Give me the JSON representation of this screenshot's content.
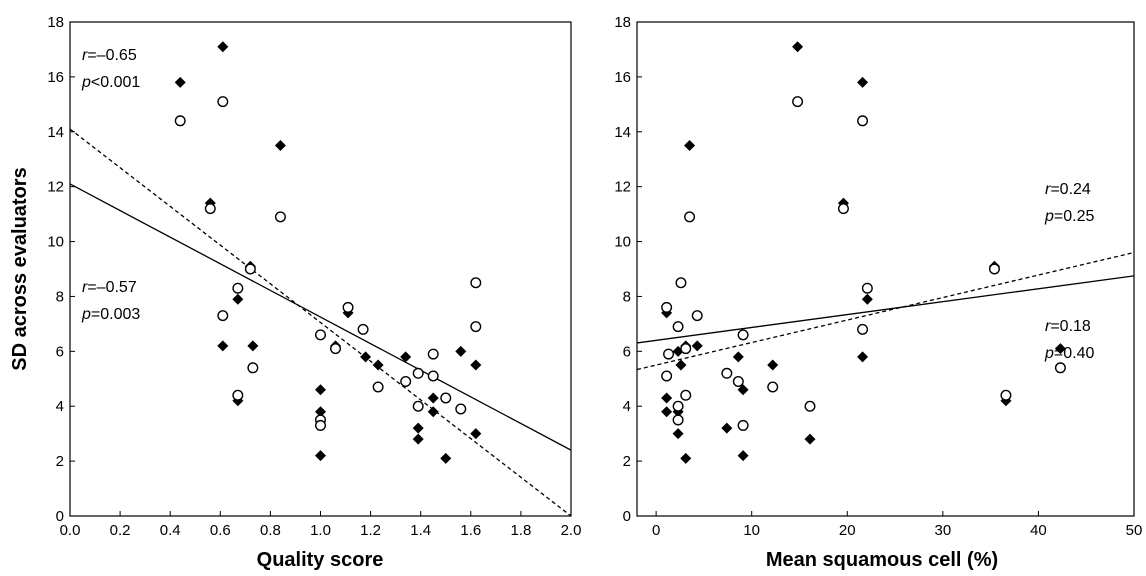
{
  "colors": {
    "axis": "#000000",
    "marker": "#000000",
    "background": "#ffffff"
  },
  "chart_data": [
    {
      "type": "scatter",
      "xlabel": "Quality score",
      "ylabel": "SD across evaluators",
      "xlim": [
        0.0,
        2.0
      ],
      "ylim": [
        0,
        18
      ],
      "xticks": [
        "0.0",
        "0.2",
        "0.4",
        "0.6",
        "0.8",
        "1.0",
        "1.2",
        "1.4",
        "1.6",
        "1.8",
        "2.0"
      ],
      "yticks": [
        "0",
        "2",
        "4",
        "6",
        "8",
        "10",
        "12",
        "14",
        "16",
        "18"
      ],
      "grid": false,
      "series": [
        {
          "marker": "filled-diamond",
          "line": "dashed",
          "fit": {
            "intercept": 14.1,
            "slope": -7.05
          },
          "points": [
            [
              0.44,
              15.8
            ],
            [
              0.61,
              17.1
            ],
            [
              0.56,
              11.4
            ],
            [
              0.72,
              9.1
            ],
            [
              0.84,
              13.5
            ],
            [
              0.67,
              7.9
            ],
            [
              0.61,
              6.2
            ],
            [
              0.73,
              6.2
            ],
            [
              0.67,
              4.2
            ],
            [
              1.0,
              4.6
            ],
            [
              1.0,
              3.8
            ],
            [
              1.0,
              2.2
            ],
            [
              1.11,
              7.4
            ],
            [
              1.06,
              6.2
            ],
            [
              1.18,
              5.8
            ],
            [
              1.23,
              5.5
            ],
            [
              1.34,
              5.8
            ],
            [
              1.45,
              4.3
            ],
            [
              1.45,
              3.8
            ],
            [
              1.39,
              3.2
            ],
            [
              1.39,
              2.8
            ],
            [
              1.5,
              2.1
            ],
            [
              1.56,
              6.0
            ],
            [
              1.62,
              5.5
            ],
            [
              1.62,
              3.0
            ]
          ]
        },
        {
          "marker": "open-circle",
          "line": "solid",
          "fit": {
            "intercept": 12.1,
            "slope": -4.85
          },
          "points": [
            [
              0.44,
              14.4
            ],
            [
              0.61,
              15.1
            ],
            [
              0.56,
              11.2
            ],
            [
              0.84,
              10.9
            ],
            [
              0.72,
              9.0
            ],
            [
              0.67,
              8.3
            ],
            [
              0.61,
              7.3
            ],
            [
              0.73,
              5.4
            ],
            [
              0.67,
              4.4
            ],
            [
              1.0,
              6.6
            ],
            [
              1.0,
              3.5
            ],
            [
              1.0,
              3.3
            ],
            [
              1.11,
              7.6
            ],
            [
              1.06,
              6.1
            ],
            [
              1.17,
              6.8
            ],
            [
              1.23,
              4.7
            ],
            [
              1.34,
              4.9
            ],
            [
              1.39,
              5.2
            ],
            [
              1.45,
              5.9
            ],
            [
              1.45,
              5.1
            ],
            [
              1.39,
              4.0
            ],
            [
              1.5,
              4.3
            ],
            [
              1.56,
              3.9
            ],
            [
              1.62,
              8.5
            ],
            [
              1.62,
              6.9
            ]
          ]
        }
      ],
      "annotations": [
        {
          "r": "=–0.65",
          "p": "<0.001"
        },
        {
          "r": "=–0.57",
          "p": "=0.003"
        }
      ]
    },
    {
      "type": "scatter",
      "xlabel": "Mean squamous cell (%)",
      "ylabel": "",
      "xlim": [
        -2,
        50
      ],
      "ylim": [
        0,
        18
      ],
      "xticks": [
        "0",
        "10",
        "20",
        "30",
        "40",
        "50"
      ],
      "yticks": [
        "0",
        "2",
        "4",
        "6",
        "8",
        "10",
        "12",
        "14",
        "16",
        "18"
      ],
      "grid": false,
      "series": [
        {
          "marker": "filled-diamond",
          "line": "dashed",
          "fit": {
            "intercept": 5.5,
            "slope": 0.082
          },
          "points": [
            [
              14.8,
              17.1
            ],
            [
              21.6,
              15.8
            ],
            [
              3.5,
              13.5
            ],
            [
              19.6,
              11.4
            ],
            [
              35.4,
              9.1
            ],
            [
              22.1,
              7.9
            ],
            [
              1.1,
              7.4
            ],
            [
              42.3,
              6.1
            ],
            [
              3.1,
              6.2
            ],
            [
              4.3,
              6.2
            ],
            [
              2.3,
              6.0
            ],
            [
              8.6,
              5.8
            ],
            [
              21.6,
              5.8
            ],
            [
              2.6,
              5.5
            ],
            [
              12.2,
              5.5
            ],
            [
              9.1,
              4.6
            ],
            [
              1.1,
              4.3
            ],
            [
              36.6,
              4.2
            ],
            [
              1.1,
              3.8
            ],
            [
              2.3,
              3.8
            ],
            [
              7.4,
              3.2
            ],
            [
              2.3,
              3.0
            ],
            [
              16.1,
              2.8
            ],
            [
              3.1,
              2.1
            ],
            [
              9.1,
              2.2
            ]
          ]
        },
        {
          "marker": "open-circle",
          "line": "solid",
          "fit": {
            "intercept": 6.4,
            "slope": 0.047
          },
          "points": [
            [
              14.8,
              15.1
            ],
            [
              21.6,
              14.4
            ],
            [
              19.6,
              11.2
            ],
            [
              3.5,
              10.9
            ],
            [
              35.4,
              9.0
            ],
            [
              2.6,
              8.5
            ],
            [
              22.1,
              8.3
            ],
            [
              1.1,
              7.6
            ],
            [
              4.3,
              7.3
            ],
            [
              2.3,
              6.9
            ],
            [
              21.6,
              6.8
            ],
            [
              9.1,
              6.6
            ],
            [
              3.1,
              6.1
            ],
            [
              1.3,
              5.9
            ],
            [
              42.3,
              5.4
            ],
            [
              7.4,
              5.2
            ],
            [
              1.1,
              5.1
            ],
            [
              8.6,
              4.9
            ],
            [
              12.2,
              4.7
            ],
            [
              3.1,
              4.4
            ],
            [
              36.6,
              4.4
            ],
            [
              16.1,
              4.0
            ],
            [
              2.3,
              4.0
            ],
            [
              2.3,
              3.5
            ],
            [
              9.1,
              3.3
            ]
          ]
        }
      ],
      "annotations": [
        {
          "r": "=0.24",
          "p": "=0.25"
        },
        {
          "r": "=0.18",
          "p": "=0.40"
        }
      ]
    }
  ]
}
